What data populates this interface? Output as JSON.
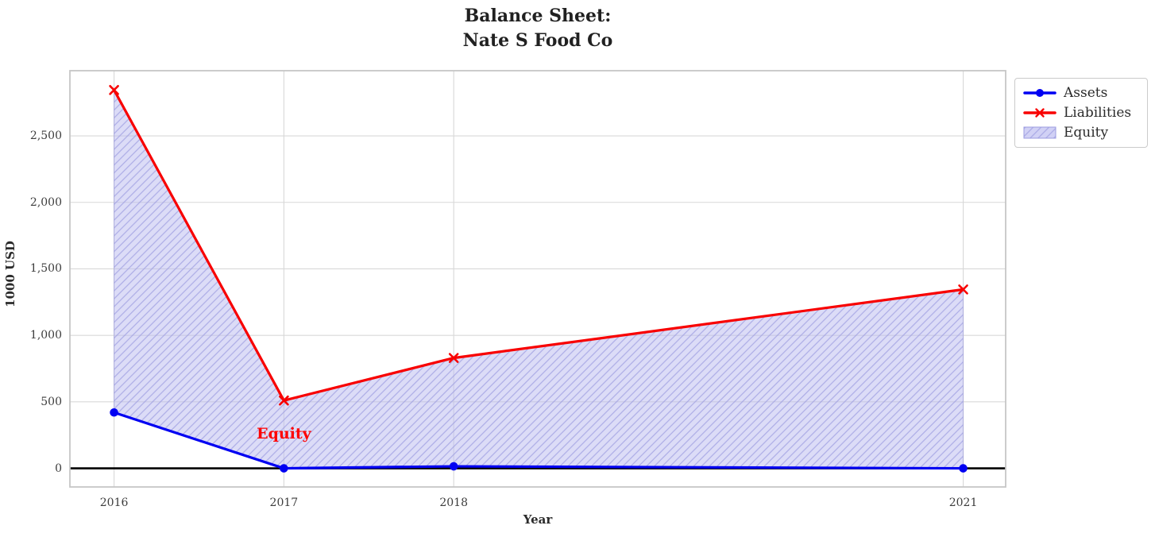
{
  "figure": {
    "title_line1": "Balance Sheet:",
    "title_line2": "Nate S Food Co",
    "xlabel": "Year",
    "ylabel": "1000 USD"
  },
  "chart_data": {
    "type": "line",
    "title": "Balance Sheet: Nate S Food Co",
    "xlabel": "Year",
    "ylabel": "1000 USD",
    "x": [
      2016,
      2017,
      2018,
      2021
    ],
    "series": [
      {
        "name": "Assets",
        "color": "#0000f2",
        "marker": "circle",
        "values": [
          420,
          0,
          15,
          0
        ]
      },
      {
        "name": "Liabilities",
        "color": "#f80000",
        "marker": "x",
        "values": [
          2845,
          510,
          830,
          1345
        ]
      }
    ],
    "area": {
      "name": "Equity",
      "between": [
        "Assets",
        "Liabilities"
      ],
      "fill_color": "#b9b9ef",
      "fill_opacity": 0.5,
      "hatch": "diagonal-forward",
      "hatch_color": "#9c9ce0"
    },
    "annotation": {
      "text": "Equity",
      "x": 2017,
      "y": 260,
      "color": "#ff0000"
    },
    "xticks": [
      {
        "value": 2016,
        "label": "2016"
      },
      {
        "value": 2017,
        "label": "2017"
      },
      {
        "value": 2018,
        "label": "2018"
      },
      {
        "value": 2021,
        "label": "2021"
      }
    ],
    "yticks": [
      {
        "value": 0,
        "label": "0"
      },
      {
        "value": 500,
        "label": "500"
      },
      {
        "value": 1000,
        "label": "1,000"
      },
      {
        "value": 1500,
        "label": "1,500"
      },
      {
        "value": 2000,
        "label": "2,000"
      },
      {
        "value": 2500,
        "label": "2,500"
      }
    ],
    "xlim": [
      2015.74,
      2021.25
    ],
    "ylim": [
      -140,
      2990
    ],
    "grid": true,
    "grid_color": "#d8d8d8",
    "spine_color": "#c6c6c6",
    "zero_line": true,
    "zero_line_color": "#000000",
    "legend_position": "upper-right"
  }
}
